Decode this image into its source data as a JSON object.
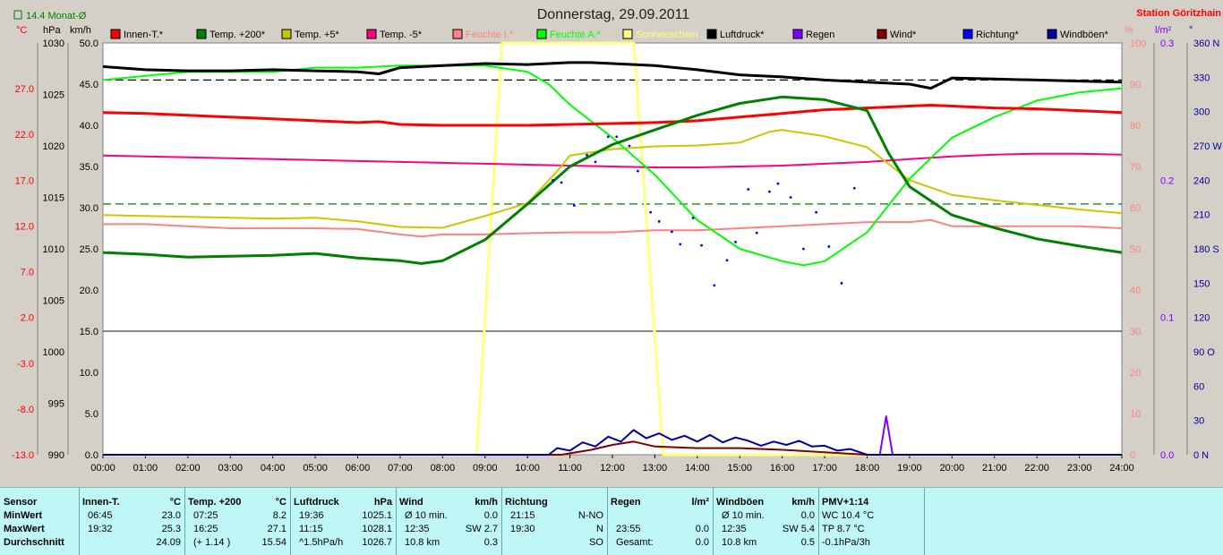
{
  "title": "Donnerstag, 29.09.2011",
  "station": "Station Göritzhain",
  "month_avg": "14.4 Monat-Ø",
  "unit_labels": {
    "celsius": "°C",
    "hpa": "hPa",
    "kmh": "km/h",
    "percent": "%",
    "rain": "l/m²",
    "degree": "°"
  },
  "legend": [
    {
      "label": "Innen-T.*",
      "color": "#ff0000"
    },
    {
      "label": "Temp. +200*",
      "color": "#008000"
    },
    {
      "label": "Temp. +5*",
      "color": "#c8c800"
    },
    {
      "label": "Temp. -5*",
      "color": "#ff0080"
    },
    {
      "label": "Feuchte I.*",
      "color": "#ff8080"
    },
    {
      "label": "Feuchte A.*",
      "color": "#00ff00"
    },
    {
      "label": "Sonnenschein",
      "color": "#ffff80"
    },
    {
      "label": "Luftdruck*",
      "color": "#000000"
    },
    {
      "label": "Regen",
      "color": "#8000ff"
    },
    {
      "label": "Wind*",
      "color": "#800000"
    },
    {
      "label": "Richtung*",
      "color": "#0000ff"
    },
    {
      "label": "Windböen*",
      "color": "#0000a0"
    }
  ],
  "chart_data": {
    "type": "line",
    "x_ticks": [
      "00:00",
      "01:00",
      "02:00",
      "03:00",
      "04:00",
      "05:00",
      "06:00",
      "07:00",
      "08:00",
      "09:00",
      "10:00",
      "11:00",
      "12:00",
      "13:00",
      "14:00",
      "15:00",
      "16:00",
      "17:00",
      "18:00",
      "19:00",
      "20:00",
      "21:00",
      "22:00",
      "23:00",
      "24:00"
    ],
    "axes": {
      "temp_c": {
        "range": [
          -13,
          32
        ],
        "ticks": [
          "27.0",
          "22.0",
          "17.0",
          "12.0",
          "7.0",
          "2.0",
          "-3.0",
          "-8.0",
          "-13.0"
        ],
        "color": "#ff0000"
      },
      "pressure_hpa": {
        "range": [
          990,
          1030
        ],
        "ticks": [
          "1030",
          "1025",
          "1020",
          "1015",
          "1010",
          "1005",
          "1000",
          "995",
          "990"
        ]
      },
      "speed_kmh": {
        "range": [
          0,
          50
        ],
        "ticks": [
          "50.0",
          "45.0",
          "40.0",
          "35.0",
          "30.0",
          "25.0",
          "20.0",
          "15.0",
          "10.0",
          "5.0",
          "0.0"
        ]
      },
      "humidity_pct": {
        "range": [
          0,
          100
        ],
        "ticks": [
          "100",
          "90",
          "80",
          "70",
          "60",
          "50",
          "40",
          "30",
          "20",
          "10",
          "0"
        ],
        "color": "#ff8080"
      },
      "rain_lm2": {
        "range": [
          0,
          0.3
        ],
        "ticks": [
          "0.3",
          "0.2",
          "0.1",
          "0.0"
        ],
        "color": "#8000ff"
      },
      "direction_deg": {
        "range": [
          0,
          360
        ],
        "ticks": [
          "360 N",
          "330",
          "300",
          "270 W",
          "240",
          "210",
          "180 S",
          "150",
          "120",
          "90 O",
          "60",
          "30",
          "0 N"
        ],
        "color": "#0000a0"
      }
    },
    "series": [
      {
        "name": "Luftdruck*",
        "axis": "pressure_hpa",
        "color": "#000000",
        "x": [
          0,
          1,
          2,
          3,
          4,
          5,
          6,
          6.5,
          7,
          8,
          9,
          10,
          11,
          11.5,
          12,
          13,
          14,
          15,
          16,
          17,
          18,
          19,
          19.5,
          20,
          21,
          22,
          23,
          24
        ],
        "y": [
          1027.7,
          1027.4,
          1027.3,
          1027.3,
          1027.4,
          1027.3,
          1027.2,
          1027.0,
          1027.6,
          1027.8,
          1028.0,
          1027.9,
          1028.1,
          1028.1,
          1028.0,
          1027.8,
          1027.4,
          1026.9,
          1026.7,
          1026.4,
          1026.2,
          1026.0,
          1025.6,
          1026.6,
          1026.5,
          1026.4,
          1026.3,
          1026.2
        ]
      },
      {
        "name": "Innen-T.*",
        "axis": "temp_c",
        "color": "#ff0000",
        "x": [
          0,
          1,
          2,
          3,
          4,
          5,
          6,
          6.5,
          7,
          8,
          9,
          10,
          11,
          12,
          13,
          14,
          15,
          16,
          17,
          18,
          19,
          19.5,
          20,
          21,
          22,
          23,
          24
        ],
        "y": [
          24.4,
          24.3,
          24.1,
          23.9,
          23.7,
          23.5,
          23.3,
          23.4,
          23.1,
          23.0,
          23.0,
          23.0,
          23.1,
          23.2,
          23.3,
          23.5,
          23.9,
          24.3,
          24.7,
          24.9,
          25.1,
          25.2,
          25.1,
          24.9,
          24.8,
          24.6,
          24.4
        ]
      },
      {
        "name": "Temp. +200*",
        "axis": "temp_c",
        "color": "#008000",
        "x": [
          0,
          1,
          2,
          3,
          4,
          5,
          6,
          7,
          7.5,
          8,
          9,
          10,
          11,
          12,
          13,
          14,
          15,
          16,
          17,
          18,
          18.5,
          19,
          20,
          21,
          22,
          23,
          24
        ],
        "y": [
          9.1,
          8.9,
          8.6,
          8.7,
          8.8,
          9.0,
          8.5,
          8.2,
          7.9,
          8.2,
          10.5,
          14.4,
          18.5,
          20.9,
          22.5,
          24.1,
          25.4,
          26.1,
          25.8,
          24.6,
          20,
          16.3,
          13.2,
          11.8,
          10.6,
          9.8,
          9.1
        ]
      },
      {
        "name": "Temp. +5*",
        "axis": "temp_c",
        "color": "#c8c800",
        "x": [
          0,
          1,
          2,
          3,
          4,
          5,
          6,
          7,
          8,
          9,
          10,
          10.7,
          11,
          12,
          13,
          14,
          15,
          15.7,
          16,
          17,
          18,
          19,
          20,
          21,
          22,
          23,
          24
        ],
        "y": [
          13.2,
          13.1,
          13.0,
          12.9,
          12.8,
          12.9,
          12.5,
          11.9,
          11.8,
          13.1,
          14.5,
          18.0,
          19.7,
          20.4,
          20.7,
          20.8,
          21.1,
          22.3,
          22.5,
          21.8,
          20.6,
          17.0,
          15.4,
          14.8,
          14.3,
          13.8,
          13.4
        ]
      },
      {
        "name": "Temp. -5*",
        "axis": "temp_c",
        "color": "#ff0080",
        "x": [
          0,
          1,
          2,
          3,
          4,
          5,
          6,
          7,
          8,
          9,
          10,
          11,
          12,
          13,
          14,
          15,
          16,
          17,
          18,
          19,
          20,
          21,
          22,
          23,
          24
        ],
        "y": [
          19.7,
          19.6,
          19.5,
          19.4,
          19.3,
          19.2,
          19.1,
          19.0,
          18.9,
          18.8,
          18.7,
          18.6,
          18.5,
          18.4,
          18.4,
          18.5,
          18.6,
          18.8,
          19.0,
          19.3,
          19.6,
          19.8,
          19.9,
          19.9,
          19.8
        ]
      },
      {
        "name": "Feuchte I.*",
        "axis": "humidity_pct",
        "color": "#ff8080",
        "x": [
          0,
          1,
          2,
          3,
          4,
          5,
          6,
          7,
          7.5,
          8,
          9,
          10,
          11,
          12,
          13,
          14,
          15,
          16,
          17,
          18,
          19,
          19.5,
          20,
          21,
          22,
          23,
          24
        ],
        "y": [
          56,
          56,
          55.5,
          55,
          55,
          55,
          54.8,
          53.5,
          53,
          53.5,
          53.5,
          53.8,
          54,
          54,
          54.5,
          54.5,
          55,
          55.5,
          56,
          56.5,
          56.5,
          57,
          55.5,
          55.5,
          55.5,
          55.5,
          55
        ]
      },
      {
        "name": "Feuchte A.*",
        "axis": "humidity_pct",
        "color": "#00ff00",
        "x": [
          0,
          1,
          2,
          3,
          4,
          5,
          6,
          7,
          8,
          9,
          10,
          10.5,
          11,
          12,
          13,
          14,
          15,
          16,
          16.5,
          17,
          18,
          19,
          20,
          21,
          22,
          23,
          24
        ],
        "y": [
          91,
          92,
          93,
          93,
          93,
          94,
          94,
          94.5,
          94.5,
          94.5,
          93,
          90,
          85,
          77,
          68,
          57,
          50,
          47,
          46,
          47,
          54,
          67,
          77,
          82,
          86,
          88,
          89
        ]
      },
      {
        "name": "Sonnenschein",
        "axis": "speed_kmh",
        "color": "#ffff80",
        "x": [
          0,
          8.8,
          9.4,
          12.5,
          13.2,
          24
        ],
        "y": [
          0,
          0,
          50,
          50,
          0,
          0
        ]
      },
      {
        "name": "Regen",
        "axis": "rain_lm2",
        "color": "#8000ff",
        "x": [
          18,
          18.3,
          18.45,
          18.6,
          24
        ],
        "y": [
          0,
          0,
          0.028,
          0,
          0
        ]
      },
      {
        "name": "Wind*",
        "axis": "speed_kmh",
        "color": "#800000",
        "x": [
          0,
          10.8,
          11.5,
          12,
          12.5,
          13,
          14,
          15,
          16,
          17,
          18,
          24
        ],
        "y": [
          0,
          0,
          0.6,
          1.2,
          1.6,
          1.0,
          0.8,
          0.8,
          0.6,
          0.3,
          0,
          0
        ]
      },
      {
        "name": "Windböen*",
        "axis": "speed_kmh",
        "color": "#0000a0",
        "x": [
          0,
          10.5,
          10.7,
          11,
          11.3,
          11.6,
          11.9,
          12.2,
          12.5,
          12.8,
          13.1,
          13.4,
          13.7,
          14,
          14.3,
          14.6,
          14.9,
          15.2,
          15.5,
          15.8,
          16.1,
          16.4,
          16.7,
          17,
          17.3,
          17.6,
          18,
          24
        ],
        "y": [
          0,
          0,
          0.8,
          0.5,
          1.5,
          1.0,
          2.2,
          1.6,
          3.0,
          2.0,
          2.6,
          1.8,
          2.3,
          1.6,
          2.4,
          1.5,
          2.1,
          1.7,
          1.1,
          1.6,
          1.2,
          1.7,
          1.0,
          1.1,
          0.5,
          0.7,
          0,
          0
        ]
      },
      {
        "name": "Richtung*",
        "axis": "direction_deg",
        "color": "#0000ff",
        "type": "scatter",
        "x": [
          10.6,
          10.8,
          11.1,
          11.4,
          11.6,
          11.9,
          12.1,
          12.4,
          12.6,
          12.9,
          13.1,
          13.4,
          13.6,
          13.9,
          14.1,
          14.4,
          14.7,
          14.9,
          15.2,
          15.4,
          15.7,
          15.9,
          16.2,
          16.5,
          16.8,
          17.1,
          17.4,
          17.7
        ],
        "y": [
          240,
          238,
          218,
          262,
          256,
          278,
          278,
          270,
          248,
          212,
          204,
          195,
          184,
          207,
          183,
          148,
          170,
          186,
          232,
          194,
          230,
          237,
          225,
          180,
          212,
          182,
          150,
          233
        ]
      }
    ],
    "reference_lines": [
      {
        "axis": "pressure_hpa",
        "value": 1026.4,
        "style": "dashed",
        "color": "#000000"
      },
      {
        "axis": "temp_c",
        "value": 14.4,
        "style": "dashed",
        "color": "#008000"
      },
      {
        "axis": "speed_kmh",
        "value": 15.0,
        "style": "solid",
        "color": "#404040"
      }
    ]
  },
  "table": {
    "sensor": {
      "header": "Sensor",
      "rows": [
        "MinWert",
        "MaxWert",
        "Durchschnitt"
      ]
    },
    "innen": {
      "header": "Innen-T.",
      "unit": "°C",
      "r1a": "06:45",
      "r1b": "23.0",
      "r2a": "19:32",
      "r2b": "25.3",
      "r3a": "",
      "r3b": "24.09"
    },
    "temp200": {
      "header": "Temp. +200",
      "unit": "°C",
      "r1a": "07:25",
      "r1b": "8.2",
      "r2a": "16:25",
      "r2b": "27.1",
      "r3a": "(+ 1.14 )",
      "r3b": "15.54"
    },
    "druck": {
      "header": "Luftdruck",
      "unit": "hPa",
      "r1a": "19:36",
      "r1b": "1025.1",
      "r2a": "11:15",
      "r2b": "1028.1",
      "r3a": "^1.5hPa/h",
      "r3b": "1026.7"
    },
    "wind": {
      "header": "Wind",
      "unit": "km/h",
      "r1a": "Ø 10 min.",
      "r1b": "0.0",
      "r2a": "12:35",
      "r2b": "SW 2.7",
      "r3a": "10.8 km",
      "r3b": "0.3"
    },
    "richtung": {
      "header": "Richtung",
      "unit": "",
      "r1a": "21:15",
      "r1b": "N-NO",
      "r2a": "19:30",
      "r2b": "N",
      "r3a": "",
      "r3b": "SO"
    },
    "regen": {
      "header": "Regen",
      "unit": "l/m²",
      "r1a": "",
      "r1b": "",
      "r2a": "23:55",
      "r2b": "0.0",
      "r3a": "Gesamt:",
      "r3b": "0.0"
    },
    "boeen": {
      "header": "Windböen",
      "unit": "km/h",
      "r1a": "Ø 10 min.",
      "r1b": "0.0",
      "r2a": "12:35",
      "r2b": "SW 5.4",
      "r3a": "10.8 km",
      "r3b": "0.5"
    },
    "pmv": {
      "header": "PMV+1:14",
      "r1": "WC 10.4 °C",
      "r2": "TP 8.7 °C",
      "r3": "-0.1hPa/3h"
    }
  }
}
